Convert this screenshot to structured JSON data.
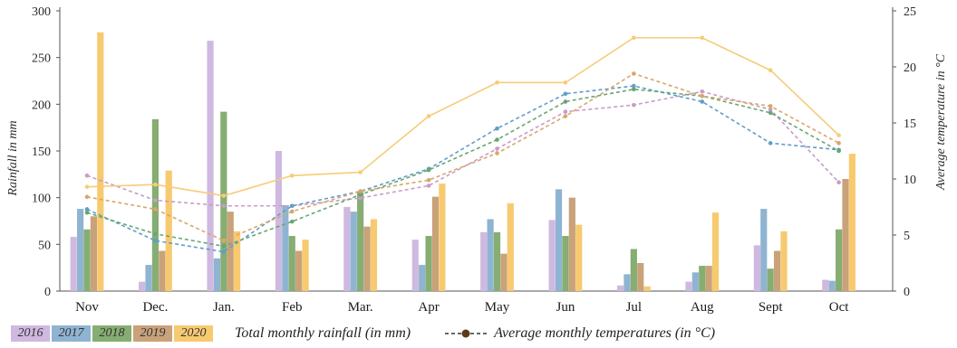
{
  "chart_data": {
    "type": "bar",
    "categories": [
      "Nov",
      "Dec.",
      "Jan.",
      "Feb",
      "Mar.",
      "Apr",
      "May",
      "Jun",
      "Jul",
      "Aug",
      "Sept",
      "Oct"
    ],
    "ylabel": "Rainfall in mm",
    "ylim": [
      0,
      300
    ],
    "yticks": [
      0,
      50,
      100,
      150,
      200,
      250,
      300
    ],
    "y2label": "Average temperature in °C",
    "y2lim": [
      0,
      25
    ],
    "y2ticks": [
      0,
      5,
      10,
      15,
      20,
      25
    ],
    "series": [
      {
        "name": "2016",
        "color": "#cfb9e0",
        "values": [
          58,
          10,
          268,
          150,
          90,
          55,
          63,
          76,
          6,
          10,
          49,
          12
        ]
      },
      {
        "name": "2017",
        "color": "#8fb4d2",
        "values": [
          88,
          28,
          35,
          92,
          85,
          28,
          77,
          109,
          18,
          20,
          88,
          11
        ]
      },
      {
        "name": "2018",
        "color": "#86ad72",
        "values": [
          66,
          184,
          192,
          59,
          106,
          59,
          63,
          59,
          45,
          27,
          24,
          66
        ]
      },
      {
        "name": "2019",
        "color": "#c9a27a",
        "values": [
          80,
          43,
          85,
          43,
          69,
          101,
          40,
          100,
          30,
          27,
          43,
          120
        ]
      },
      {
        "name": "2020",
        "color": "#f7ca70",
        "values": [
          277,
          129,
          64,
          55,
          77,
          115,
          94,
          71,
          5,
          84,
          64,
          147
        ]
      }
    ],
    "temperature_series": [
      {
        "name": "2016",
        "color": "#c89cc8",
        "style": "dashed",
        "values": [
          10.3,
          8.1,
          7.6,
          7.6,
          8.3,
          9.4,
          12.7,
          16,
          16.6,
          17.8,
          16.2,
          9.7
        ]
      },
      {
        "name": "2017",
        "color": "#5f9ec8",
        "style": "dashed",
        "values": [
          7.3,
          4.5,
          3.5,
          7.6,
          8.9,
          10.9,
          14.5,
          17.6,
          18.3,
          16.9,
          13.2,
          12.6
        ]
      },
      {
        "name": "2018",
        "color": "#69a573",
        "style": "dashed",
        "values": [
          7,
          5.1,
          4,
          6.2,
          8.6,
          10.8,
          13.5,
          16.9,
          18,
          17.4,
          15.9,
          12.5
        ]
      },
      {
        "name": "2019",
        "color": "#d9a66a",
        "style": "dashed",
        "values": [
          8.4,
          7.3,
          4.5,
          7.1,
          8.9,
          9.9,
          12.3,
          15.6,
          19.4,
          17.4,
          16.5,
          13.2
        ]
      },
      {
        "name": "2020",
        "color": "#f5cc78",
        "style": "solid",
        "values": [
          9.3,
          9.5,
          8.5,
          10.3,
          10.6,
          15.6,
          18.6,
          18.6,
          22.6,
          22.6,
          19.7,
          13.9
        ]
      }
    ]
  },
  "legend": {
    "total_rainfall_label": "Total monthly rainfall (in mm)",
    "average_temp_label": "Average monthly temperatures (in °C)"
  }
}
